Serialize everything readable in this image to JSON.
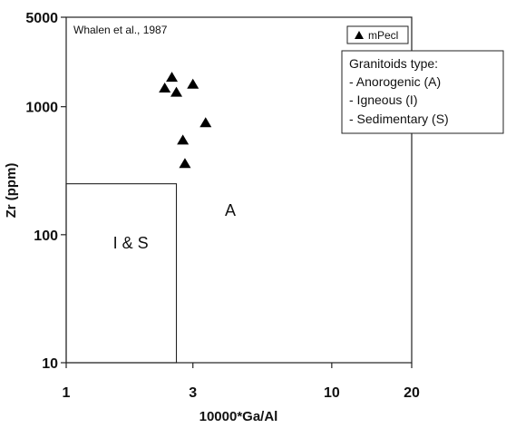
{
  "chart_data": {
    "type": "scatter",
    "xscale": "log",
    "yscale": "log",
    "xlim": [
      1,
      20
    ],
    "ylim": [
      10,
      5000
    ],
    "xlabel": "10000*Ga/Al",
    "ylabel": "Zr (ppm)",
    "xticks": [
      1,
      3,
      10,
      20
    ],
    "xtick_labels": [
      "1",
      "3",
      "10",
      "20"
    ],
    "yticks": [
      10,
      100,
      1000,
      5000
    ],
    "ytick_labels": [
      "10",
      "100",
      "1000",
      "5000"
    ],
    "grid": false,
    "legend_position": "top-right",
    "series": [
      {
        "name": "mPecl",
        "marker": "triangle",
        "color": "#000000",
        "points": [
          {
            "x": 2.5,
            "y": 1700
          },
          {
            "x": 2.35,
            "y": 1400
          },
          {
            "x": 2.6,
            "y": 1300
          },
          {
            "x": 3.0,
            "y": 1500
          },
          {
            "x": 3.35,
            "y": 750
          },
          {
            "x": 2.75,
            "y": 550
          },
          {
            "x": 2.8,
            "y": 360
          }
        ]
      }
    ],
    "fields": [
      {
        "label": "I & S",
        "x_max": 2.6,
        "y_max": 250,
        "label_x": 1.75,
        "label_y": 78
      },
      {
        "label": "A",
        "label_x": 4.15,
        "label_y": 140
      }
    ],
    "annotations": {
      "source": "Whalen et al., 1987",
      "granitoids_title": "Granitoids type:",
      "granitoids_items": [
        "- Anorogenic (A)",
        "- Igneous (I)",
        "- Sedimentary (S)"
      ]
    }
  }
}
